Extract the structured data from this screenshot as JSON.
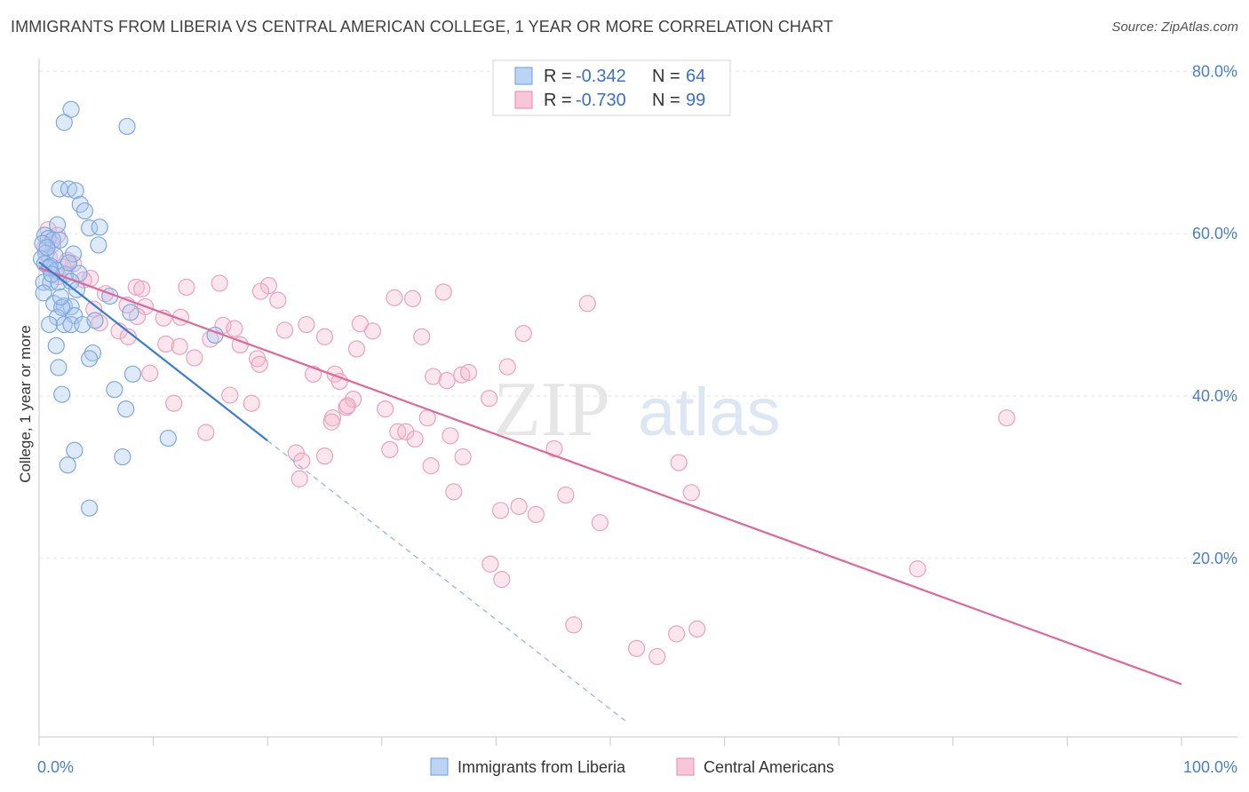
{
  "header": {
    "title": "IMMIGRANTS FROM LIBERIA VS CENTRAL AMERICAN COLLEGE, 1 YEAR OR MORE CORRELATION CHART",
    "source": "Source: ZipAtlas.com"
  },
  "watermark": {
    "zip": "ZIP",
    "atlas": "atlas"
  },
  "colors": {
    "blue": "#6a9de0",
    "blue_line": "#3a7bd5",
    "pink": "#e88aaa",
    "pink_line": "#e0679a",
    "axis_text": "#4a7fc8"
  },
  "legend_top": {
    "rows": [
      {
        "r_label": "R = ",
        "r_value": "-0.342",
        "n_label": "N = ",
        "n_value": "64"
      },
      {
        "r_label": "R = ",
        "r_value": "-0.730",
        "n_label": "N = ",
        "n_value": "99"
      }
    ]
  },
  "chart_data": {
    "type": "scatter",
    "title": "IMMIGRANTS FROM LIBERIA VS CENTRAL AMERICAN COLLEGE, 1 YEAR OR MORE CORRELATION CHART",
    "xlabel": "",
    "ylabel": "College, 1 year or more",
    "xlim": [
      0,
      100
    ],
    "ylim": [
      -2,
      82
    ],
    "x_tick_labels": {
      "left": "0.0%",
      "right": "100.0%"
    },
    "y_ticks": [
      {
        "value": 20,
        "label": "20.0%"
      },
      {
        "value": 40,
        "label": "40.0%"
      },
      {
        "value": 60,
        "label": "60.0%"
      },
      {
        "value": 80,
        "label": "80.0%"
      }
    ],
    "legend": [
      "Immigrants from Liberia",
      "Central Americans"
    ],
    "series": [
      {
        "name": "Immigrants from Liberia",
        "color": "#6a9de0",
        "r": -0.342,
        "n": 64,
        "trend": {
          "x0": 0,
          "y0": 56.5,
          "x1": 20,
          "y1": 34.5,
          "dashed_to_x": 51.3,
          "dashed_to_y": 0
        },
        "points": [
          [
            2.8,
            75.3
          ],
          [
            2.2,
            73.7
          ],
          [
            7.7,
            73.2
          ],
          [
            1.8,
            65.5
          ],
          [
            2.6,
            65.5
          ],
          [
            3.2,
            65.3
          ],
          [
            3.6,
            63.6
          ],
          [
            4.0,
            62.8
          ],
          [
            1.6,
            61.1
          ],
          [
            4.4,
            60.7
          ],
          [
            5.3,
            60.8
          ],
          [
            0.5,
            59.8
          ],
          [
            0.8,
            59.4
          ],
          [
            1.2,
            59.2
          ],
          [
            1.8,
            59.2
          ],
          [
            0.3,
            58.8
          ],
          [
            5.2,
            58.6
          ],
          [
            0.6,
            57.6
          ],
          [
            1.4,
            57.3
          ],
          [
            0.2,
            56.9
          ],
          [
            0.5,
            56.3
          ],
          [
            1.0,
            56.0
          ],
          [
            1.5,
            55.5
          ],
          [
            2.3,
            55.0
          ],
          [
            3.5,
            55.1
          ],
          [
            0.4,
            54.0
          ],
          [
            1.0,
            54.0
          ],
          [
            1.7,
            54.0
          ],
          [
            2.8,
            54.1
          ],
          [
            3.3,
            53.1
          ],
          [
            0.4,
            52.7
          ],
          [
            6.2,
            52.3
          ],
          [
            1.3,
            51.4
          ],
          [
            2.2,
            51.1
          ],
          [
            2.8,
            51.0
          ],
          [
            1.6,
            49.7
          ],
          [
            3.1,
            49.9
          ],
          [
            0.9,
            48.8
          ],
          [
            2.2,
            48.8
          ],
          [
            2.8,
            48.8
          ],
          [
            3.8,
            48.8
          ],
          [
            8.0,
            50.3
          ],
          [
            15.4,
            47.5
          ],
          [
            1.5,
            46.2
          ],
          [
            4.7,
            45.3
          ],
          [
            4.4,
            44.6
          ],
          [
            1.7,
            43.5
          ],
          [
            8.2,
            42.7
          ],
          [
            2.0,
            40.2
          ],
          [
            6.6,
            40.8
          ],
          [
            7.6,
            38.4
          ],
          [
            11.3,
            34.8
          ],
          [
            3.1,
            33.3
          ],
          [
            2.5,
            31.5
          ],
          [
            7.3,
            32.5
          ],
          [
            4.4,
            26.2
          ],
          [
            0.9,
            55.8
          ],
          [
            2.0,
            50.9
          ],
          [
            1.1,
            55.0
          ],
          [
            3.0,
            57.5
          ],
          [
            0.7,
            58.3
          ],
          [
            2.6,
            56.4
          ],
          [
            1.9,
            52.2
          ],
          [
            4.9,
            49.3
          ]
        ]
      },
      {
        "name": "Central Americans",
        "color": "#e88aaa",
        "r": -0.73,
        "n": 99,
        "trend": {
          "x0": 0,
          "y0": 55.8,
          "x1": 100,
          "y1": 4.5
        },
        "points": [
          [
            0.8,
            60.5
          ],
          [
            1.6,
            59.8
          ],
          [
            1.2,
            58.7
          ],
          [
            0.5,
            58.3
          ],
          [
            0.9,
            57.0
          ],
          [
            3.0,
            56.3
          ],
          [
            2.1,
            55.9
          ],
          [
            1.7,
            54.7
          ],
          [
            4.5,
            54.5
          ],
          [
            5.8,
            52.6
          ],
          [
            7.7,
            51.2
          ],
          [
            9.3,
            51.0
          ],
          [
            8.5,
            53.4
          ],
          [
            9.0,
            53.2
          ],
          [
            12.9,
            53.4
          ],
          [
            15.8,
            53.9
          ],
          [
            20.1,
            53.6
          ],
          [
            19.4,
            52.9
          ],
          [
            20.9,
            51.8
          ],
          [
            31.1,
            52.1
          ],
          [
            32.7,
            52.0
          ],
          [
            35.4,
            52.8
          ],
          [
            48.0,
            51.4
          ],
          [
            4.8,
            50.7
          ],
          [
            8.6,
            49.8
          ],
          [
            10.9,
            49.6
          ],
          [
            12.4,
            49.7
          ],
          [
            5.3,
            49.0
          ],
          [
            16.1,
            48.7
          ],
          [
            17.1,
            48.3
          ],
          [
            21.5,
            48.1
          ],
          [
            23.4,
            48.8
          ],
          [
            28.1,
            48.9
          ],
          [
            29.2,
            48.0
          ],
          [
            7.0,
            48.0
          ],
          [
            7.8,
            47.3
          ],
          [
            15.0,
            47.0
          ],
          [
            25.0,
            47.3
          ],
          [
            33.5,
            47.3
          ],
          [
            42.4,
            47.7
          ],
          [
            11.1,
            46.4
          ],
          [
            12.3,
            46.1
          ],
          [
            17.6,
            46.3
          ],
          [
            27.8,
            45.8
          ],
          [
            13.6,
            44.7
          ],
          [
            19.1,
            44.6
          ],
          [
            19.3,
            43.9
          ],
          [
            9.7,
            42.8
          ],
          [
            24.0,
            42.7
          ],
          [
            25.9,
            42.7
          ],
          [
            26.3,
            41.8
          ],
          [
            34.5,
            42.4
          ],
          [
            37.0,
            42.6
          ],
          [
            37.6,
            42.9
          ],
          [
            41.0,
            43.6
          ],
          [
            35.7,
            41.9
          ],
          [
            16.7,
            40.1
          ],
          [
            18.6,
            39.1
          ],
          [
            11.8,
            39.1
          ],
          [
            27.5,
            39.6
          ],
          [
            26.9,
            38.6
          ],
          [
            30.3,
            38.4
          ],
          [
            39.4,
            39.7
          ],
          [
            27.0,
            38.8
          ],
          [
            25.7,
            37.3
          ],
          [
            25.6,
            36.8
          ],
          [
            34.0,
            37.3
          ],
          [
            31.4,
            35.6
          ],
          [
            32.1,
            35.6
          ],
          [
            32.9,
            34.7
          ],
          [
            36.0,
            35.1
          ],
          [
            45.1,
            33.5
          ],
          [
            30.7,
            33.4
          ],
          [
            22.5,
            33.0
          ],
          [
            25.0,
            32.6
          ],
          [
            37.1,
            32.5
          ],
          [
            23.0,
            32.0
          ],
          [
            34.3,
            31.4
          ],
          [
            56.0,
            31.8
          ],
          [
            22.8,
            29.8
          ],
          [
            36.3,
            28.2
          ],
          [
            46.1,
            27.8
          ],
          [
            57.1,
            28.1
          ],
          [
            40.4,
            25.9
          ],
          [
            42.0,
            26.4
          ],
          [
            43.5,
            25.4
          ],
          [
            49.1,
            24.4
          ],
          [
            14.6,
            35.5
          ],
          [
            84.7,
            37.3
          ],
          [
            76.9,
            18.7
          ],
          [
            39.5,
            19.3
          ],
          [
            40.5,
            17.4
          ],
          [
            46.8,
            11.8
          ],
          [
            52.3,
            8.9
          ],
          [
            55.8,
            10.7
          ],
          [
            57.6,
            11.3
          ],
          [
            54.1,
            7.9
          ],
          [
            3.9,
            54.3
          ],
          [
            2.5,
            56.7
          ]
        ]
      }
    ]
  }
}
